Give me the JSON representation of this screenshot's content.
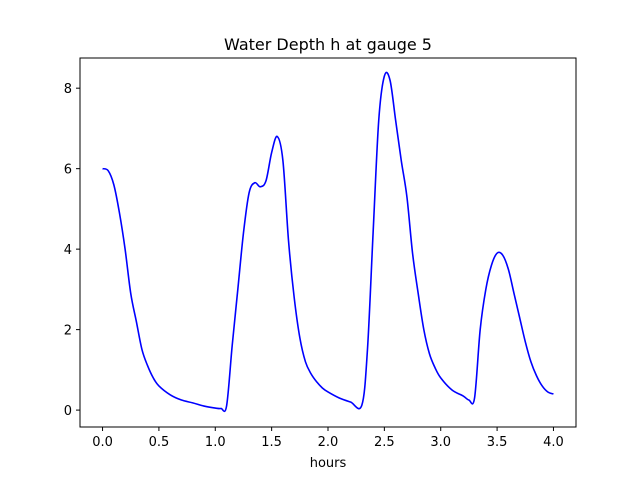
{
  "chart_data": {
    "type": "line",
    "title": "Water Depth h at gauge 5",
    "xlabel": "hours",
    "ylabel": "",
    "xlim": [
      -0.2,
      4.2
    ],
    "ylim": [
      -0.42,
      8.75
    ],
    "xticks": [
      0.0,
      0.5,
      1.0,
      1.5,
      2.0,
      2.5,
      3.0,
      3.5,
      4.0
    ],
    "xtick_labels": [
      "0.0",
      "0.5",
      "1.0",
      "1.5",
      "2.0",
      "2.5",
      "3.0",
      "3.5",
      "4.0"
    ],
    "yticks": [
      0,
      2,
      4,
      6,
      8
    ],
    "ytick_labels": [
      "0",
      "2",
      "4",
      "6",
      "8"
    ],
    "grid": false,
    "series": [
      {
        "color": "#0000ff",
        "x": [
          0.0,
          0.05,
          0.1,
          0.15,
          0.2,
          0.25,
          0.3,
          0.35,
          0.4,
          0.45,
          0.5,
          0.6,
          0.7,
          0.8,
          0.9,
          1.0,
          1.05,
          1.1,
          1.15,
          1.2,
          1.25,
          1.3,
          1.35,
          1.4,
          1.45,
          1.5,
          1.55,
          1.6,
          1.65,
          1.7,
          1.75,
          1.8,
          1.85,
          1.9,
          1.95,
          2.0,
          2.1,
          2.2,
          2.3,
          2.35,
          2.4,
          2.45,
          2.5,
          2.55,
          2.6,
          2.65,
          2.7,
          2.75,
          2.8,
          2.85,
          2.9,
          2.95,
          3.0,
          3.1,
          3.2,
          3.25,
          3.3,
          3.35,
          3.4,
          3.45,
          3.5,
          3.55,
          3.6,
          3.65,
          3.7,
          3.75,
          3.8,
          3.85,
          3.9,
          3.95,
          4.0
        ],
        "y": [
          6.0,
          5.95,
          5.6,
          4.9,
          4.0,
          2.9,
          2.2,
          1.5,
          1.1,
          0.8,
          0.6,
          0.38,
          0.25,
          0.18,
          0.1,
          0.05,
          0.04,
          0.1,
          1.6,
          3.0,
          4.4,
          5.4,
          5.65,
          5.55,
          5.7,
          6.4,
          6.8,
          6.2,
          4.2,
          2.8,
          1.8,
          1.2,
          0.9,
          0.7,
          0.55,
          0.45,
          0.3,
          0.2,
          0.12,
          1.5,
          4.4,
          7.2,
          8.3,
          8.2,
          7.2,
          6.2,
          5.3,
          3.9,
          2.9,
          2.0,
          1.4,
          1.05,
          0.8,
          0.5,
          0.35,
          0.25,
          0.3,
          2.0,
          3.0,
          3.6,
          3.9,
          3.85,
          3.5,
          2.9,
          2.3,
          1.7,
          1.2,
          0.85,
          0.6,
          0.45,
          0.4
        ]
      }
    ]
  }
}
